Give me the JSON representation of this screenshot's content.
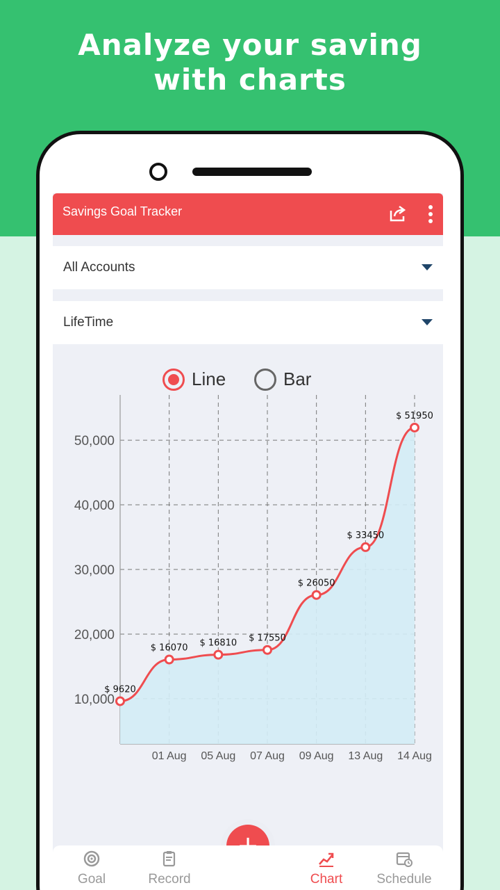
{
  "headline": {
    "line1": "Analyze your saving",
    "line2": "with charts"
  },
  "app": {
    "title": "Savings Goal Tracker"
  },
  "icons": {
    "share": "share-icon",
    "more": "more-vert-icon"
  },
  "filters": {
    "account": {
      "selected": "All Accounts"
    },
    "period": {
      "selected": "LifeTime"
    }
  },
  "chart_mode": {
    "options": [
      "Line",
      "Bar"
    ],
    "selected": "Line"
  },
  "colors": {
    "accent": "#ef4c4f",
    "brand_green": "#35c170",
    "area_fill": "#d3ecf6",
    "inactive": "#999999"
  },
  "chart_data": {
    "type": "line",
    "x": [
      "",
      "01 Aug",
      "05 Aug",
      "07 Aug",
      "09 Aug",
      "13 Aug",
      "14 Aug"
    ],
    "values": [
      9620,
      16070,
      16810,
      17550,
      26050,
      33450,
      51950
    ],
    "data_labels": [
      "$ 9620",
      "$ 16070",
      "$ 16810",
      "$ 17550",
      "$ 26050",
      "$ 33450",
      "$ 51950"
    ],
    "y_ticks": [
      10000,
      20000,
      30000,
      40000,
      50000
    ],
    "y_tick_labels": [
      "10,000",
      "20,000",
      "30,000",
      "40,000",
      "50,000"
    ],
    "ylim": [
      3000,
      57000
    ],
    "grid": true,
    "area_fill": true,
    "title": "",
    "xlabel": "",
    "ylabel": ""
  },
  "bottom_nav": {
    "items": [
      {
        "label": "Goal",
        "icon": "target-icon",
        "active": false
      },
      {
        "label": "Record",
        "icon": "clipboard-icon",
        "active": false
      },
      {
        "label": "Chart",
        "icon": "chart-up-icon",
        "active": true
      },
      {
        "label": "Schedule",
        "icon": "calendar-clock-icon",
        "active": false
      }
    ],
    "fab": {
      "label": "+"
    }
  }
}
